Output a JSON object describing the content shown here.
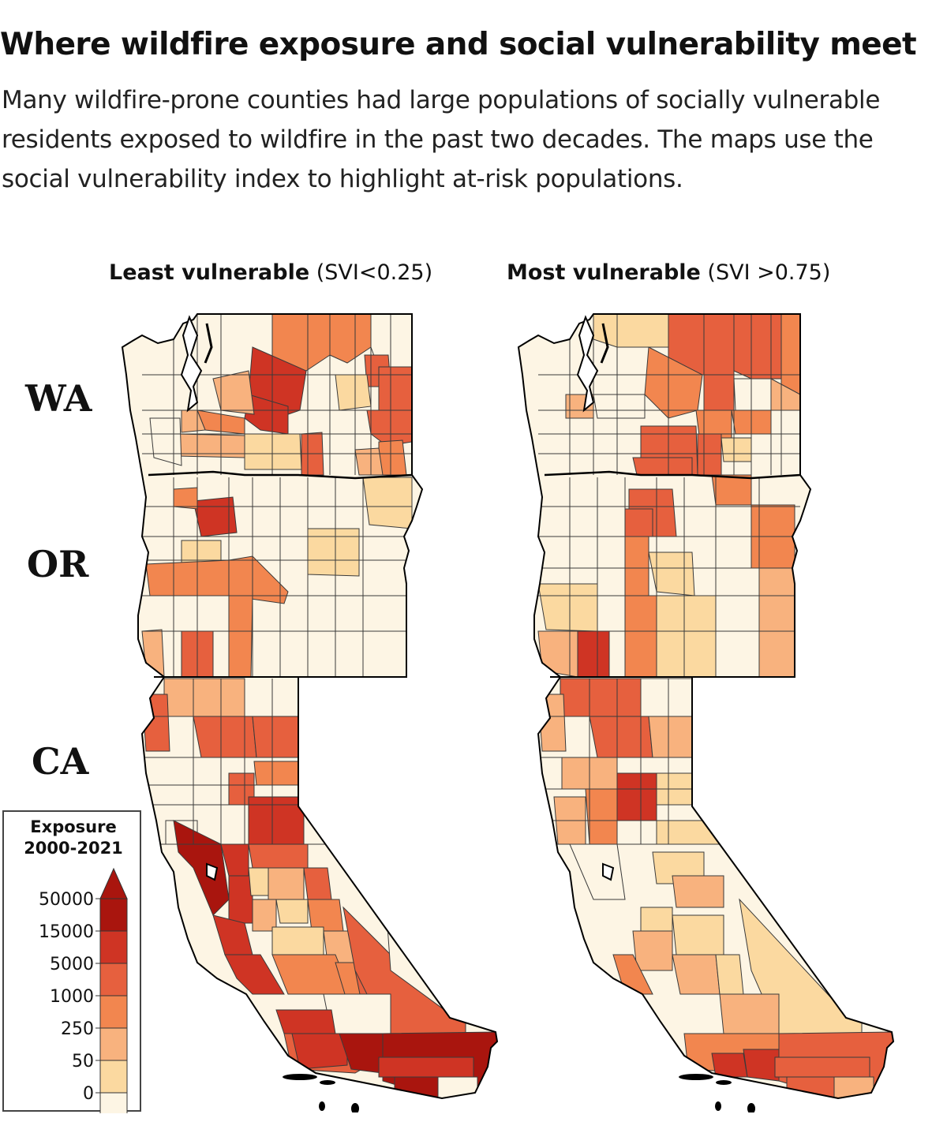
{
  "title": "Where wildfire exposure and social vulnerability meet",
  "subtitle": "Many wildfire-prone counties had large populations of socially vulnerable residents exposed to wildfire in the past two decades. The maps use the social vulnerability index to highlight at-risk populations.",
  "maps": [
    {
      "heading_bold": "Least vulnerable",
      "heading_rest": " (SVI<0.25)"
    },
    {
      "heading_bold": "Most vulnerable",
      "heading_rest": " (SVI >0.75)"
    }
  ],
  "state_labels": [
    "WA",
    "OR",
    "CA"
  ],
  "legend": {
    "title_line1": "Exposure",
    "title_line2": "2000-2021",
    "ticks": [
      "50000",
      "15000",
      "5000",
      "1000",
      "250",
      "50",
      "0"
    ],
    "colors": [
      "#fdf5e4",
      "#fbd9a0",
      "#f8b27e",
      "#f2864f",
      "#e6603e",
      "#cf3424",
      "#a9150e"
    ]
  }
}
